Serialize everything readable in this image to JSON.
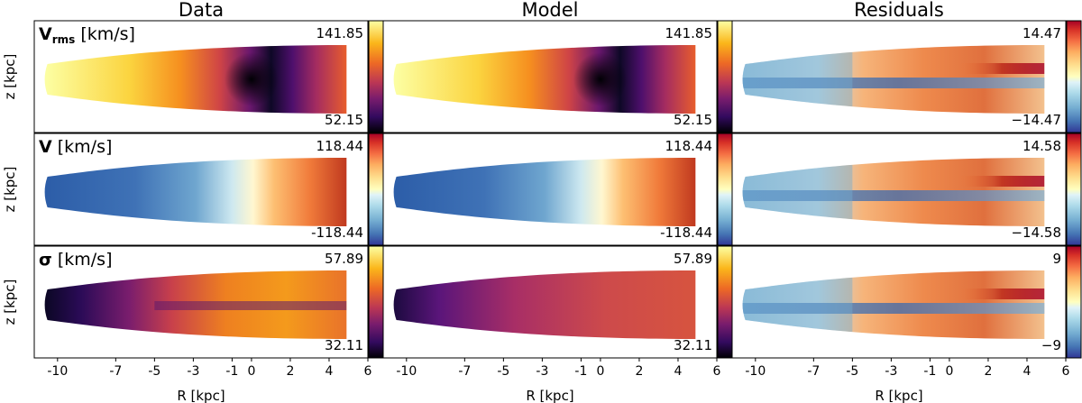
{
  "chart_data": {
    "type": "heatmap",
    "column_titles": [
      "Data",
      "Model",
      "Residuals"
    ],
    "row_labels": [
      {
        "symbol": "V",
        "subscript": "rms",
        "unit": "[km/s]"
      },
      {
        "symbol": "V",
        "subscript": "",
        "unit": "[km/s]"
      },
      {
        "symbol": "σ",
        "subscript": "",
        "unit": "[km/s]"
      }
    ],
    "xlabel": "R [kpc]",
    "ylabel": "z [kpc]",
    "x_tick_labels": [
      "-10",
      "-7",
      "-5",
      "-3",
      "-1",
      "0",
      "2",
      "4",
      "6"
    ],
    "x_tick_values": [
      -10,
      -7,
      -5,
      -3,
      -1,
      0,
      2,
      4,
      6
    ],
    "xlim": [
      -11.2,
      6
    ],
    "colorbar_ranges": [
      {
        "data_model": {
          "max": "141.85",
          "min": "52.15",
          "cmap": "inferno"
        },
        "residual": {
          "max": "14.47",
          "min": "−14.47",
          "cmap": "RdYlBu_r"
        }
      },
      {
        "data_model": {
          "max": "118.44",
          "min": "-118.44",
          "cmap": "RdYlBu_r"
        },
        "residual": {
          "max": "14.58",
          "min": "−14.58",
          "cmap": "RdYlBu_r"
        }
      },
      {
        "data_model": {
          "max": "57.89",
          "min": "32.11",
          "cmap": "inferno"
        },
        "residual": {
          "max": "9",
          "min": "−9",
          "cmap": "RdYlBu_r"
        }
      }
    ],
    "colors": {
      "inferno": [
        "#000004",
        "#320a5e",
        "#781c6d",
        "#bc3754",
        "#ed6925",
        "#fbb61a",
        "#fcffa4"
      ],
      "diverging": [
        "#313695",
        "#4575b4",
        "#74add1",
        "#abd9e9",
        "#e0f3f8",
        "#ffffbf",
        "#fee090",
        "#fdae61",
        "#f46d43",
        "#d73027",
        "#a50026"
      ]
    }
  }
}
